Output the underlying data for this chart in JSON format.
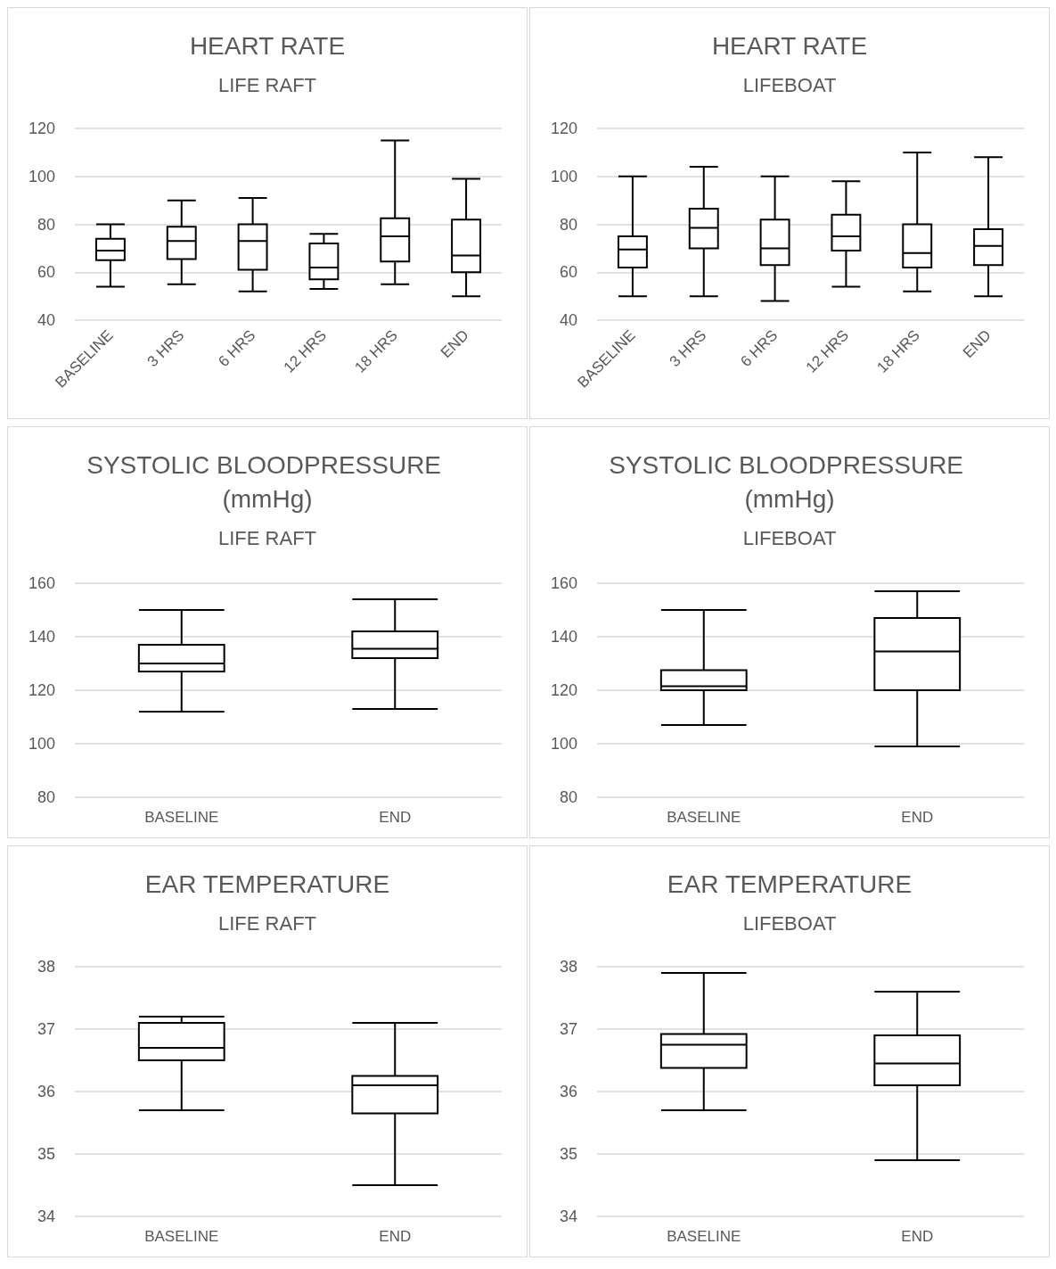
{
  "chart_data": [
    {
      "type": "box",
      "title": "HEART RATE",
      "subtitle": "LIFE RAFT",
      "categories": [
        "BASELINE",
        "3 HRS",
        "6 HRS",
        "12 HRS",
        "18 HRS",
        "END"
      ],
      "ylim": [
        40,
        120
      ],
      "yticks": [
        40,
        60,
        80,
        100,
        120
      ],
      "grid": "y",
      "boxes": [
        {
          "low": 54,
          "q1": 65,
          "median": 69,
          "q3": 74,
          "high": 80
        },
        {
          "low": 55,
          "q1": 65.5,
          "median": 73,
          "q3": 79,
          "high": 90
        },
        {
          "low": 52,
          "q1": 61,
          "median": 73,
          "q3": 80,
          "high": 91
        },
        {
          "low": 53,
          "q1": 57,
          "median": 62,
          "q3": 72,
          "high": 76
        },
        {
          "low": 55,
          "q1": 64.5,
          "median": 75,
          "q3": 82.5,
          "high": 115
        },
        {
          "low": 50,
          "q1": 60,
          "median": 67,
          "q3": 82,
          "high": 99
        }
      ]
    },
    {
      "type": "box",
      "title": "HEART RATE",
      "subtitle": "LIFEBOAT",
      "categories": [
        "BASELINE",
        "3 HRS",
        "6 HRS",
        "12 HRS",
        "18 HRS",
        "END"
      ],
      "ylim": [
        40,
        120
      ],
      "yticks": [
        40,
        60,
        80,
        100,
        120
      ],
      "grid": "y",
      "boxes": [
        {
          "low": 50,
          "q1": 62,
          "median": 69.5,
          "q3": 75,
          "high": 100
        },
        {
          "low": 50,
          "q1": 70,
          "median": 78.5,
          "q3": 86.5,
          "high": 104
        },
        {
          "low": 48,
          "q1": 63,
          "median": 70,
          "q3": 82,
          "high": 100
        },
        {
          "low": 54,
          "q1": 69,
          "median": 75,
          "q3": 84,
          "high": 98
        },
        {
          "low": 52,
          "q1": 62,
          "median": 68,
          "q3": 80,
          "high": 110
        },
        {
          "low": 50,
          "q1": 63,
          "median": 71,
          "q3": 78,
          "high": 108
        }
      ]
    },
    {
      "type": "box",
      "title": "SYSTOLIC BLOODPRESSURE (mmHg)",
      "subtitle": "LIFE RAFT",
      "categories": [
        "BASELINE",
        "END"
      ],
      "ylim": [
        80,
        160
      ],
      "yticks": [
        80,
        100,
        120,
        140,
        160
      ],
      "grid": "y",
      "boxes": [
        {
          "low": 112,
          "q1": 127,
          "median": 130,
          "q3": 137,
          "high": 150
        },
        {
          "low": 113,
          "q1": 132,
          "median": 135.5,
          "q3": 142,
          "high": 154
        }
      ]
    },
    {
      "type": "box",
      "title": "SYSTOLIC BLOODPRESSURE (mmHg)",
      "subtitle": "LIFEBOAT",
      "categories": [
        "BASELINE",
        "END"
      ],
      "ylim": [
        80,
        160
      ],
      "yticks": [
        80,
        100,
        120,
        140,
        160
      ],
      "grid": "y",
      "boxes": [
        {
          "low": 107,
          "q1": 120,
          "median": 121.5,
          "q3": 127.5,
          "high": 150
        },
        {
          "low": 99,
          "q1": 120,
          "median": 134.5,
          "q3": 147,
          "high": 157
        }
      ]
    },
    {
      "type": "box",
      "title": "EAR TEMPERATURE",
      "subtitle": "LIFE RAFT",
      "categories": [
        "BASELINE",
        "END"
      ],
      "ylim": [
        34,
        38
      ],
      "yticks": [
        34,
        35,
        36,
        37,
        38
      ],
      "grid": "y",
      "boxes": [
        {
          "low": 35.7,
          "q1": 36.5,
          "median": 36.7,
          "q3": 37.1,
          "high": 37.2
        },
        {
          "low": 34.5,
          "q1": 35.65,
          "median": 36.1,
          "q3": 36.25,
          "high": 37.1
        }
      ]
    },
    {
      "type": "box",
      "title": "EAR TEMPERATURE",
      "subtitle": "LIFEBOAT",
      "categories": [
        "BASELINE",
        "END"
      ],
      "ylim": [
        34,
        38
      ],
      "yticks": [
        34,
        35,
        36,
        37,
        38
      ],
      "grid": "y",
      "boxes": [
        {
          "low": 35.7,
          "q1": 36.38,
          "median": 36.75,
          "q3": 36.92,
          "high": 37.9
        },
        {
          "low": 34.9,
          "q1": 36.1,
          "median": 36.45,
          "q3": 36.9,
          "high": 37.6
        }
      ]
    }
  ]
}
